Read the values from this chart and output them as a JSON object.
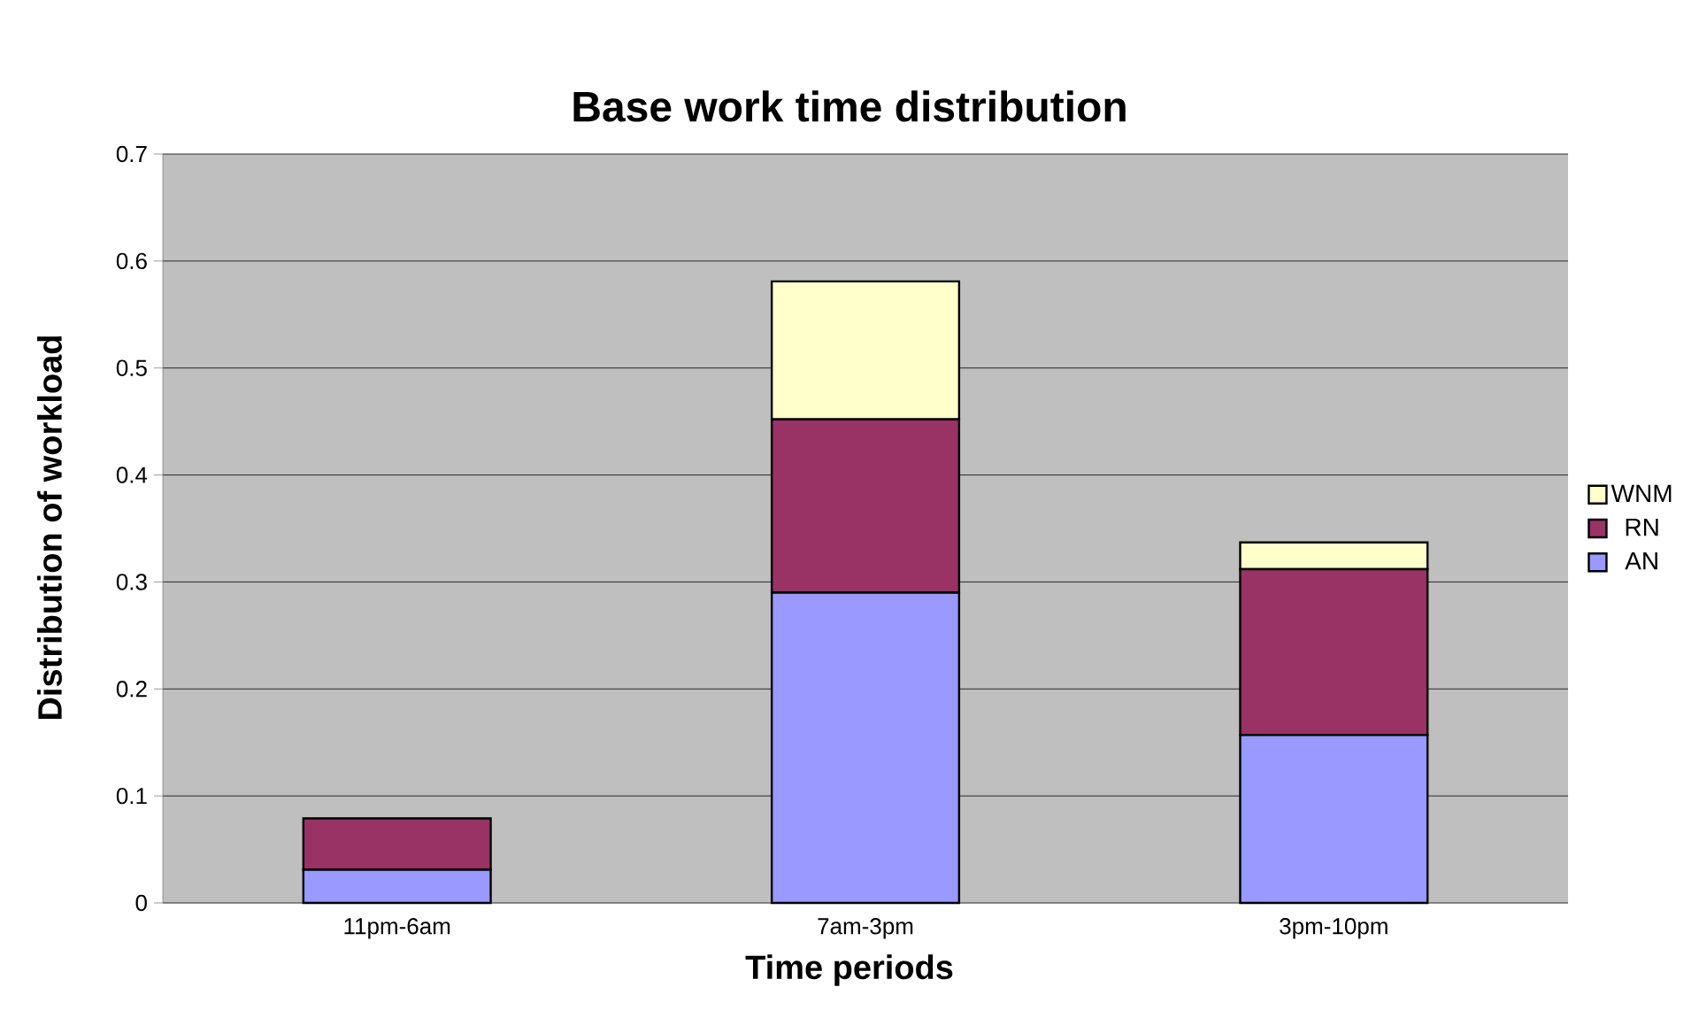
{
  "chart_data": {
    "type": "bar",
    "title": "Base work time distribution",
    "xlabel": "Time periods",
    "ylabel": "Distribution of workload",
    "categories": [
      "11pm-6am",
      "7am-3pm",
      "3pm-10pm"
    ],
    "stacked": true,
    "series": [
      {
        "name": "AN",
        "color": "#9999ff",
        "values": [
          0.031,
          0.29,
          0.157
        ]
      },
      {
        "name": "RN",
        "color": "#993366",
        "values": [
          0.048,
          0.162,
          0.155
        ]
      },
      {
        "name": "WNM",
        "color": "#ffffcc",
        "values": [
          0,
          0.129,
          0.025
        ]
      }
    ],
    "ylim": [
      0,
      0.7
    ],
    "yticks": [
      0,
      0.1,
      0.2,
      0.3,
      0.4,
      0.5,
      0.6,
      0.7
    ],
    "grid": "y",
    "legend": "right"
  }
}
